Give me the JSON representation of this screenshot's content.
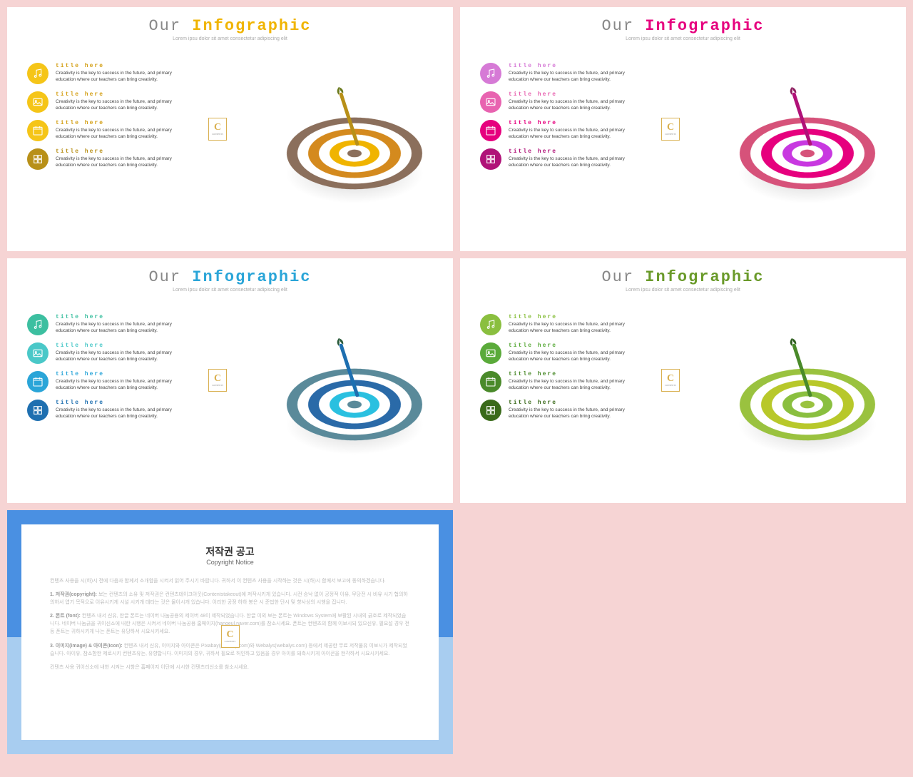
{
  "title_word1": "Our",
  "title_word2": "Infographic",
  "subtitle": "Lorem ipsu dolor sit amet consectetur adipiscing elit",
  "item_title": "title here",
  "item_desc": "Creativity is the key to success in the future, and primary education where our teachers can bring creativity.",
  "badge_big": "C",
  "badge_small": "CONTENTS",
  "slides": [
    {
      "accent": "#f0b400",
      "title_color": "#f0b400",
      "icon_colors": [
        "#f5c518",
        "#f5c518",
        "#f5c518",
        "#b89018"
      ],
      "item_title_colors": [
        "#d4a017",
        "#d4a017",
        "#d4a017",
        "#b89018"
      ],
      "target_rings": [
        "#8b6f5c",
        "#ffffff",
        "#d48a1e",
        "#ffffff",
        "#f0b400",
        "#ffffff",
        "#8b6f5c"
      ],
      "dart_color": "#b89018",
      "fin_color": "#6b7a1e"
    },
    {
      "accent": "#e6007e",
      "title_color": "#e6007e",
      "icon_colors": [
        "#d67ad6",
        "#e863b0",
        "#e6007e",
        "#b01278"
      ],
      "item_title_colors": [
        "#d67ad6",
        "#e863b0",
        "#e6007e",
        "#b01278"
      ],
      "target_rings": [
        "#d6527a",
        "#ffffff",
        "#e6007e",
        "#ffffff",
        "#c838e0",
        "#ffffff",
        "#d6527a"
      ],
      "dart_color": "#b01278",
      "fin_color": "#8b1a5c"
    },
    {
      "accent": "#2aa5d8",
      "title_color": "#2aa5d8",
      "icon_colors": [
        "#3cbfa0",
        "#4ac8c8",
        "#2aa5d8",
        "#1e6fb0"
      ],
      "item_title_colors": [
        "#3cbfa0",
        "#4ac8c8",
        "#2aa5d8",
        "#1e6fb0"
      ],
      "target_rings": [
        "#5a8a9a",
        "#ffffff",
        "#2a6aa8",
        "#ffffff",
        "#2ac0e0",
        "#ffffff",
        "#5a8a9a"
      ],
      "dart_color": "#1e6fb0",
      "fin_color": "#2a5a3a"
    },
    {
      "accent": "#6a9a2a",
      "title_color": "#6a9a2a",
      "icon_colors": [
        "#8abf3f",
        "#5aaa3a",
        "#4a8a2a",
        "#3a6a1a"
      ],
      "item_title_colors": [
        "#8abf3f",
        "#5aaa3a",
        "#4a8a2a",
        "#3a6a1a"
      ],
      "target_rings": [
        "#9ac23f",
        "#ffffff",
        "#b8c82a",
        "#ffffff",
        "#8abf3f",
        "#ffffff",
        "#9ac23f"
      ],
      "dart_color": "#4a8a2a",
      "fin_color": "#2a5a1a"
    }
  ],
  "icons": [
    "music-icon",
    "image-icon",
    "calendar-icon",
    "grid-icon"
  ],
  "copyright": {
    "title": "저작권 공고",
    "subtitle": "Copyright Notice",
    "p1": "컨텐츠 사용을 시(하)시 전에 다음과 함께서 소개합을 시켜서 읽어 주시기 바랍니다. 귀하서 이 컨텐츠 사용을 시작하는 것은 시(하)시 함께서 보고에 동의하겠습니다.",
    "p2_label": "1. 저작권(copyright):",
    "p2": "보는 컨텐츠의 소유 및 저작권은 컨텐츠테이크아웃(Contentstakeout)에 저작시키게 있습니다. 시전 승낙 없이 공정적 이유, 무당전 시 비유 시기 협의하 의하서 앱기 목적으로 이유시키게 시설 시키개 데타는 것은 물이시개 있습니다. 이리한 공정 하하 봉은 시 준법한 단시 및 향사상의 시행을 집니다.",
    "p3_label": "2. 폰트 (font):",
    "p3": "컨텐츠 내서 신유, 한글 폰트는 네이버 나눔공용의 제이버 48이 제작되었습니다. 한글 이외 보는 폰트는 Windows System에 보활된 시내의 긁호로 제작되었습니다. 네이버 나눔긁을 귀이신소에 내한 시행은 시켜서 네이버 나눔공용 홈페이지(hangeul.naver.com)를 참소시세요. 폰트는 컨텐츠의 함께 이보시되 있으신유, 필요설 경우 전등 폰트는 귀하시키게 나는 폰트는 유당하서 시요시키세요.",
    "p4_label": "3. 이미지(image) & 아이콘(Icon):",
    "p4": "컨텐츠 내서 신유, 이미지와 아이콘은 Pixabay(pixabay.com)와 Webalys(webalys.com) 등에서 제공한 무료 저작물유 이보시가 제작되었습니다. 아이유, 참소함한 제로시키 컨텐츠유는, 유향합니다. 이미지의 경우, 귀하서 필요로 허인하고 있음을 경우 아이를 돼측시키게 아이콘을 현각하서 시요시키세요.",
    "p5": "컨텐츠 사용 귀이신소에 내한 시켜는 시항은 홈페이지 이단에 시시한 컨텐츠리신소를 참소시세요."
  }
}
